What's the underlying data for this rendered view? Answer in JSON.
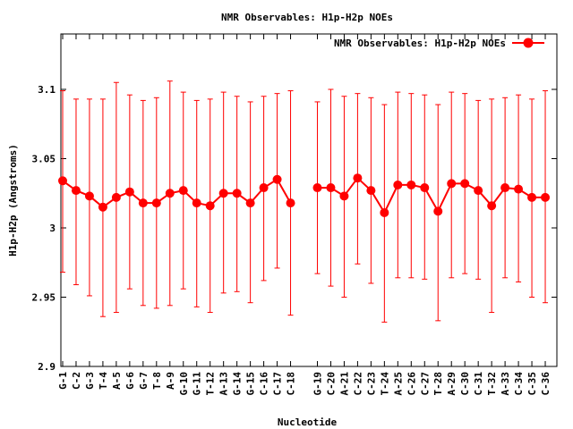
{
  "chart_data": {
    "type": "line",
    "title": "NMR Observables: H1p-H2p NOEs",
    "xlabel": "Nucleotide",
    "ylabel": "H1p-H2p (Angstroms)",
    "ylim": [
      2.9,
      3.14
    ],
    "yticks": [
      2.9,
      2.95,
      3,
      3.05,
      3.1
    ],
    "ytick_labels": [
      "2.9",
      "2.95",
      "3",
      "3.05",
      "3.1"
    ],
    "grid": false,
    "legend_position": "top-right",
    "color": "#ff0000",
    "error_bars": true,
    "series": [
      {
        "name": "NMR Observables: H1p-H2p NOEs",
        "segments": [
          {
            "categories": [
              "G-1",
              "C-2",
              "G-3",
              "T-4",
              "A-5",
              "G-6",
              "G-7",
              "T-8",
              "A-9",
              "G-10",
              "G-11",
              "T-12",
              "A-13",
              "G-14",
              "G-15",
              "C-16",
              "C-17",
              "C-18"
            ],
            "values": [
              3.034,
              3.027,
              3.023,
              3.015,
              3.022,
              3.026,
              3.018,
              3.018,
              3.025,
              3.027,
              3.018,
              3.016,
              3.025,
              3.025,
              3.018,
              3.029,
              3.035,
              3.018
            ],
            "error_low": [
              2.968,
              2.959,
              2.951,
              2.936,
              2.939,
              2.956,
              2.944,
              2.942,
              2.944,
              2.956,
              2.943,
              2.939,
              2.953,
              2.954,
              2.946,
              2.962,
              2.971,
              2.937
            ],
            "error_high": [
              3.099,
              3.093,
              3.093,
              3.093,
              3.105,
              3.096,
              3.092,
              3.094,
              3.106,
              3.098,
              3.092,
              3.093,
              3.098,
              3.095,
              3.091,
              3.095,
              3.097,
              3.099
            ]
          },
          {
            "categories": [
              "G-19",
              "C-20",
              "A-21",
              "C-22",
              "C-23",
              "T-24",
              "A-25",
              "C-26",
              "C-27",
              "T-28",
              "A-29",
              "C-30",
              "C-31",
              "T-32",
              "A-33",
              "C-34",
              "C-35",
              "C-36"
            ],
            "values": [
              3.029,
              3.029,
              3.023,
              3.036,
              3.027,
              3.011,
              3.031,
              3.031,
              3.029,
              3.012,
              3.032,
              3.032,
              3.027,
              3.016,
              3.029,
              3.028,
              3.022,
              3.022
            ],
            "error_low": [
              2.967,
              2.958,
              2.95,
              2.974,
              2.96,
              2.932,
              2.964,
              2.964,
              2.963,
              2.933,
              2.964,
              2.967,
              2.963,
              2.939,
              2.964,
              2.961,
              2.95,
              2.946
            ],
            "error_high": [
              3.091,
              3.1,
              3.095,
              3.097,
              3.094,
              3.089,
              3.098,
              3.097,
              3.096,
              3.089,
              3.098,
              3.097,
              3.092,
              3.093,
              3.094,
              3.096,
              3.093,
              3.099
            ]
          }
        ]
      }
    ]
  }
}
